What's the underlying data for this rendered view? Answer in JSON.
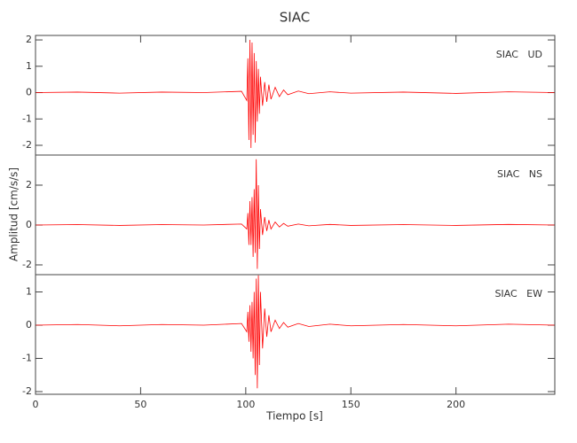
{
  "chart_data": {
    "type": "line",
    "title": "SIAC",
    "xlabel": "Tiempo [s]",
    "ylabel": "Amplitud [cm/s/s]",
    "x": [
      0,
      20,
      40,
      60,
      80,
      98,
      100.5,
      101,
      101.5,
      102,
      102.5,
      103,
      103.5,
      104,
      104.5,
      105,
      105.5,
      106,
      106.5,
      107,
      108,
      109,
      110,
      111,
      112,
      114,
      116,
      118,
      120,
      125,
      130,
      140,
      150,
      175,
      200,
      225,
      247
    ],
    "xlim": [
      0,
      247
    ],
    "xticks": [
      0,
      50,
      100,
      150,
      200
    ],
    "series": [
      {
        "name": "SIAC   UD",
        "color": "#ff0000",
        "ylim": [
          -2.37,
          2.17
        ],
        "yticks": [
          -2,
          -1,
          0,
          1,
          2
        ],
        "values": [
          0,
          0.02,
          -0.02,
          0.02,
          0,
          0.05,
          -0.3,
          1.3,
          -1.8,
          2.0,
          -2.1,
          1.9,
          -1.6,
          1.5,
          -1.9,
          1.2,
          -1.1,
          0.9,
          -0.8,
          0.6,
          -0.5,
          0.4,
          -0.35,
          0.3,
          -0.25,
          0.2,
          -0.15,
          0.1,
          -0.08,
          0.06,
          -0.04,
          0.03,
          -0.02,
          0.02,
          -0.03,
          0.03,
          0
        ]
      },
      {
        "name": "SIAC   NS",
        "color": "#ff0000",
        "ylim": [
          -2.49,
          3.51
        ],
        "yticks": [
          -2,
          0,
          2
        ],
        "values": [
          0,
          0.02,
          -0.02,
          0.02,
          0,
          0.05,
          -0.2,
          0.6,
          -1.0,
          1.2,
          -1.0,
          1.4,
          -1.6,
          1.8,
          -1.4,
          3.3,
          -2.2,
          2.0,
          -1.2,
          0.8,
          -0.5,
          0.4,
          -0.3,
          0.25,
          -0.2,
          0.15,
          -0.1,
          0.08,
          -0.06,
          0.05,
          -0.04,
          0.03,
          -0.02,
          0.02,
          -0.02,
          0.03,
          0
        ]
      },
      {
        "name": "SIAC   EW",
        "color": "#ff0000",
        "ylim": [
          -2.08,
          1.52
        ],
        "yticks": [
          -2,
          -1,
          0,
          1
        ],
        "values": [
          0,
          0.02,
          -0.02,
          0.02,
          0,
          0.05,
          -0.2,
          0.4,
          -0.5,
          0.6,
          -0.8,
          0.7,
          -1.0,
          1.0,
          -1.5,
          1.4,
          -1.9,
          1.5,
          -1.2,
          1.0,
          -0.7,
          0.5,
          -0.35,
          0.3,
          -0.2,
          0.15,
          -0.1,
          0.08,
          -0.06,
          0.05,
          -0.04,
          0.03,
          -0.02,
          0.02,
          -0.02,
          0.03,
          0
        ]
      }
    ]
  }
}
